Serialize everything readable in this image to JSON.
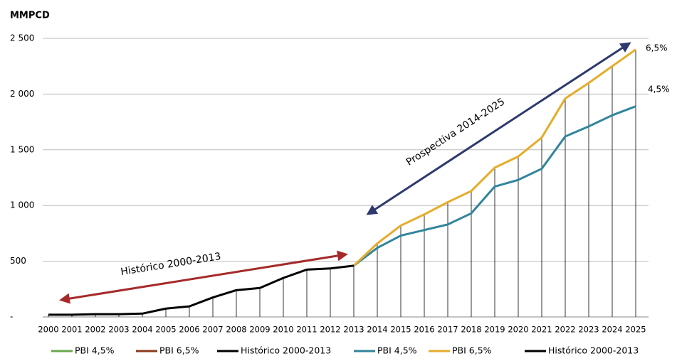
{
  "chart_data": {
    "type": "line",
    "y_label": "MMPCD",
    "categories": [
      "2000",
      "2001",
      "2002",
      "2003",
      "2004",
      "2005",
      "2006",
      "2007",
      "2008",
      "2009",
      "2010",
      "2011",
      "2012",
      "2013",
      "2014",
      "2015",
      "2016",
      "2017",
      "2018",
      "2019",
      "2020",
      "2021",
      "2022",
      "2023",
      "2024",
      "2025"
    ],
    "series": [
      {
        "name": "PBI 4,5%",
        "color": "#6aa84f",
        "values": [
          null,
          null,
          null,
          null,
          null,
          null,
          null,
          null,
          null,
          null,
          null,
          null,
          null,
          null,
          null,
          null,
          null,
          null,
          null,
          null,
          null,
          null,
          null,
          null,
          null,
          null
        ]
      },
      {
        "name": "PBI 6,5%",
        "color": "#8b3a1e",
        "values": [
          null,
          null,
          null,
          null,
          null,
          null,
          null,
          null,
          null,
          null,
          null,
          null,
          null,
          null,
          null,
          null,
          null,
          null,
          null,
          null,
          null,
          null,
          null,
          null,
          null,
          null
        ]
      },
      {
        "name": "Histórico 2000-2013",
        "color": "#000000",
        "values": [
          null,
          null,
          null,
          null,
          null,
          null,
          null,
          null,
          null,
          null,
          null,
          null,
          null,
          null,
          null,
          null,
          null,
          null,
          null,
          null,
          null,
          null,
          null,
          null,
          null,
          null
        ]
      },
      {
        "name": "PBI 4,5%",
        "color": "#31859c",
        "values": [
          null,
          null,
          null,
          null,
          null,
          null,
          null,
          null,
          null,
          null,
          null,
          null,
          null,
          460,
          620,
          730,
          780,
          830,
          930,
          1170,
          1230,
          1330,
          1620,
          1710,
          1810,
          1890
        ]
      },
      {
        "name": "PBI 6,5%",
        "color": "#e6ac2a",
        "values": [
          null,
          null,
          null,
          null,
          null,
          null,
          null,
          null,
          null,
          null,
          null,
          null,
          null,
          460,
          660,
          820,
          920,
          1030,
          1130,
          1340,
          1440,
          1610,
          1960,
          2100,
          2250,
          2400
        ]
      },
      {
        "name": "Histórico 2000-2013",
        "color": "#000000",
        "values": [
          20,
          20,
          25,
          25,
          30,
          75,
          95,
          175,
          240,
          260,
          350,
          425,
          435,
          460,
          null,
          null,
          null,
          null,
          null,
          null,
          null,
          null,
          null,
          null,
          null,
          null
        ]
      }
    ],
    "ylim": [
      0,
      2500
    ],
    "yticks": [
      {
        "value": 0,
        "label": "-"
      },
      500,
      {
        "value": 1000,
        "label": "1 000"
      },
      {
        "value": 1500,
        "label": "1 500"
      },
      {
        "value": 2000,
        "label": "2 000"
      },
      {
        "value": 2500,
        "label": "2 500"
      }
    ],
    "grid": true,
    "drop_lines": true,
    "annotations": [
      "6,5%",
      "4,5%",
      "Histórico 2000-2013",
      "Prospectiva 2014-2025"
    ],
    "legend": "bottom"
  }
}
